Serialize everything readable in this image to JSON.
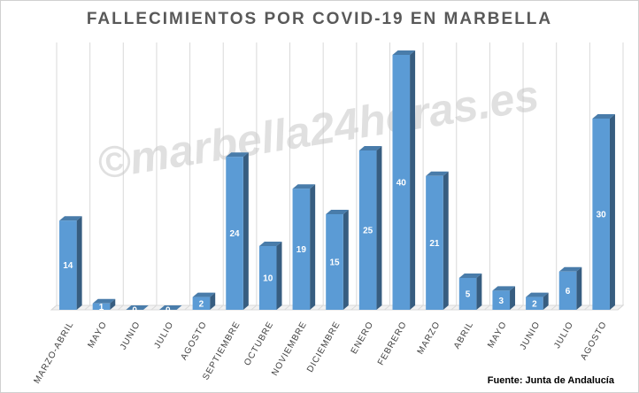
{
  "chart_data": {
    "type": "bar3d",
    "title": "FALLECIMIENTOS POR COVID-19 EN MARBELLA",
    "categories": [
      "MARZO-ABRIL",
      "MAYO",
      "JUNIO",
      "JULIO",
      "AGOSTO",
      "SEPTIEMBRE",
      "OCTUBRE",
      "NOVIEMBRE",
      "DICIEMBRE",
      "ENERO",
      "FEBRERO",
      "MARZO",
      "ABRIL",
      "MAYO",
      "JUNIO",
      "JULIO",
      "AGOSTO"
    ],
    "values": [
      14,
      1,
      0,
      0,
      2,
      24,
      10,
      19,
      15,
      25,
      40,
      21,
      5,
      3,
      2,
      6,
      30
    ],
    "color": "#5b9bd5",
    "watermark": "©marbella24horas.es",
    "source": "Fuente: Junta de Andalucía"
  }
}
